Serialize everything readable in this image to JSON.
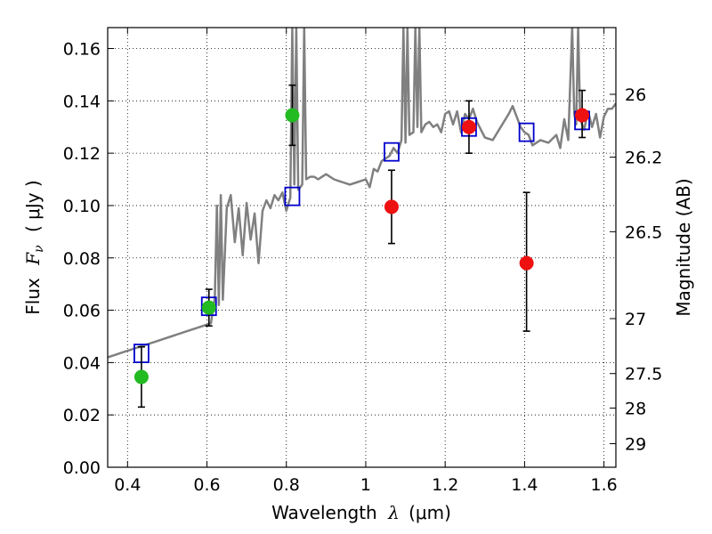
{
  "chart_data": {
    "type": "scatter",
    "xlabel": {
      "prefix": "Wavelength",
      "symbol": "λ",
      "unit": "(μm)"
    },
    "ylabel": {
      "prefix": "Flux",
      "symbol": "F",
      "subscript": "ν",
      "unit": "( μJy )"
    },
    "ylabel_right": "Magnitude (AB)",
    "xlim": [
      0.35,
      1.63
    ],
    "ylim": [
      0.0,
      0.168
    ],
    "grid": true,
    "x_ticks": [
      0.4,
      0.6,
      0.8,
      1.0,
      1.2,
      1.4,
      1.6
    ],
    "x_tick_labels": [
      "0.4",
      "0.6",
      "0.8",
      "1",
      "1.2",
      "1.4",
      "1.6"
    ],
    "y_ticks": [
      0.0,
      0.02,
      0.04,
      0.06,
      0.08,
      0.1,
      0.12,
      0.14,
      0.16
    ],
    "y_tick_labels": [
      "0.00",
      "0.02",
      "0.04",
      "0.06",
      "0.08",
      "0.10",
      "0.12",
      "0.14",
      "0.16"
    ],
    "right_ticks": [
      {
        "label": "26",
        "flux": 0.1425
      },
      {
        "label": "26.2",
        "flux": 0.1185
      },
      {
        "label": "26.5",
        "flux": 0.09
      },
      {
        "label": "27",
        "flux": 0.0568
      },
      {
        "label": "27.5",
        "flux": 0.0358
      },
      {
        "label": "28",
        "flux": 0.0226
      },
      {
        "label": "29",
        "flux": 0.009
      }
    ],
    "series": [
      {
        "kind": "line",
        "color": "#808080",
        "x": [
          0.35,
          0.37,
          0.39,
          0.41,
          0.43,
          0.45,
          0.47,
          0.49,
          0.51,
          0.53,
          0.55,
          0.57,
          0.59,
          0.61,
          0.615,
          0.62,
          0.625,
          0.63,
          0.635,
          0.64,
          0.65,
          0.66,
          0.67,
          0.68,
          0.69,
          0.7,
          0.71,
          0.72,
          0.73,
          0.74,
          0.75,
          0.76,
          0.77,
          0.78,
          0.79,
          0.8,
          0.81,
          0.815,
          0.82,
          0.825,
          0.83,
          0.835,
          0.84,
          0.845,
          0.85,
          0.86,
          0.87,
          0.88,
          0.89,
          0.9,
          0.92,
          0.94,
          0.96,
          0.98,
          1.0,
          1.01,
          1.02,
          1.03,
          1.04,
          1.05,
          1.06,
          1.07,
          1.08,
          1.09,
          1.095,
          1.1,
          1.105,
          1.11,
          1.12,
          1.125,
          1.13,
          1.135,
          1.14,
          1.15,
          1.16,
          1.17,
          1.18,
          1.19,
          1.2,
          1.21,
          1.22,
          1.23,
          1.24,
          1.25,
          1.26,
          1.27,
          1.28,
          1.29,
          1.3,
          1.32,
          1.34,
          1.36,
          1.37,
          1.38,
          1.39,
          1.4,
          1.41,
          1.42,
          1.44,
          1.46,
          1.48,
          1.49,
          1.5,
          1.51,
          1.52,
          1.525,
          1.53,
          1.535,
          1.54,
          1.55,
          1.56,
          1.57,
          1.58,
          1.59,
          1.6,
          1.61,
          1.62,
          1.63
        ],
        "y": [
          0.042,
          0.043,
          0.044,
          0.045,
          0.046,
          0.047,
          0.048,
          0.049,
          0.05,
          0.051,
          0.052,
          0.053,
          0.054,
          0.055,
          0.06,
          0.065,
          0.1,
          0.062,
          0.104,
          0.064,
          0.099,
          0.104,
          0.086,
          0.099,
          0.081,
          0.101,
          0.087,
          0.097,
          0.078,
          0.098,
          0.102,
          0.099,
          0.104,
          0.102,
          0.105,
          0.098,
          0.103,
          0.168,
          0.108,
          0.168,
          0.106,
          0.107,
          0.108,
          0.168,
          0.11,
          0.111,
          0.111,
          0.11,
          0.111,
          0.112,
          0.11,
          0.109,
          0.108,
          0.109,
          0.11,
          0.107,
          0.114,
          0.113,
          0.117,
          0.118,
          0.119,
          0.122,
          0.12,
          0.125,
          0.168,
          0.124,
          0.168,
          0.127,
          0.128,
          0.168,
          0.13,
          0.168,
          0.128,
          0.131,
          0.132,
          0.13,
          0.131,
          0.128,
          0.135,
          0.136,
          0.131,
          0.136,
          0.128,
          0.135,
          0.133,
          0.137,
          0.132,
          0.129,
          0.126,
          0.125,
          0.13,
          0.135,
          0.138,
          0.134,
          0.13,
          0.128,
          0.127,
          0.123,
          0.125,
          0.124,
          0.127,
          0.122,
          0.133,
          0.125,
          0.168,
          0.135,
          0.131,
          0.168,
          0.133,
          0.129,
          0.136,
          0.13,
          0.135,
          0.126,
          0.134,
          0.137,
          0.137,
          0.139
        ]
      },
      {
        "kind": "open-square",
        "color": "#0000cc",
        "x": [
          0.435,
          0.605,
          0.815,
          1.065,
          1.26,
          1.405,
          1.545
        ],
        "y": [
          0.0435,
          0.0615,
          0.1035,
          0.1205,
          0.13,
          0.128,
          0.1325
        ]
      },
      {
        "kind": "filled-circle",
        "color": "#22bb22",
        "x": [
          0.435,
          0.605,
          0.815
        ],
        "y": [
          0.0345,
          0.061,
          0.1345
        ],
        "err_low": [
          0.0115,
          0.007,
          0.0115
        ],
        "err_high": [
          0.0115,
          0.007,
          0.0115
        ]
      },
      {
        "kind": "filled-circle",
        "color": "#ee1111",
        "x": [
          1.065,
          1.26,
          1.405,
          1.545
        ],
        "y": [
          0.0995,
          0.13,
          0.078,
          0.1345
        ],
        "err_low": [
          0.014,
          0.01,
          0.026,
          0.0085
        ],
        "err_high": [
          0.014,
          0.01,
          0.027,
          0.0095
        ]
      }
    ]
  }
}
